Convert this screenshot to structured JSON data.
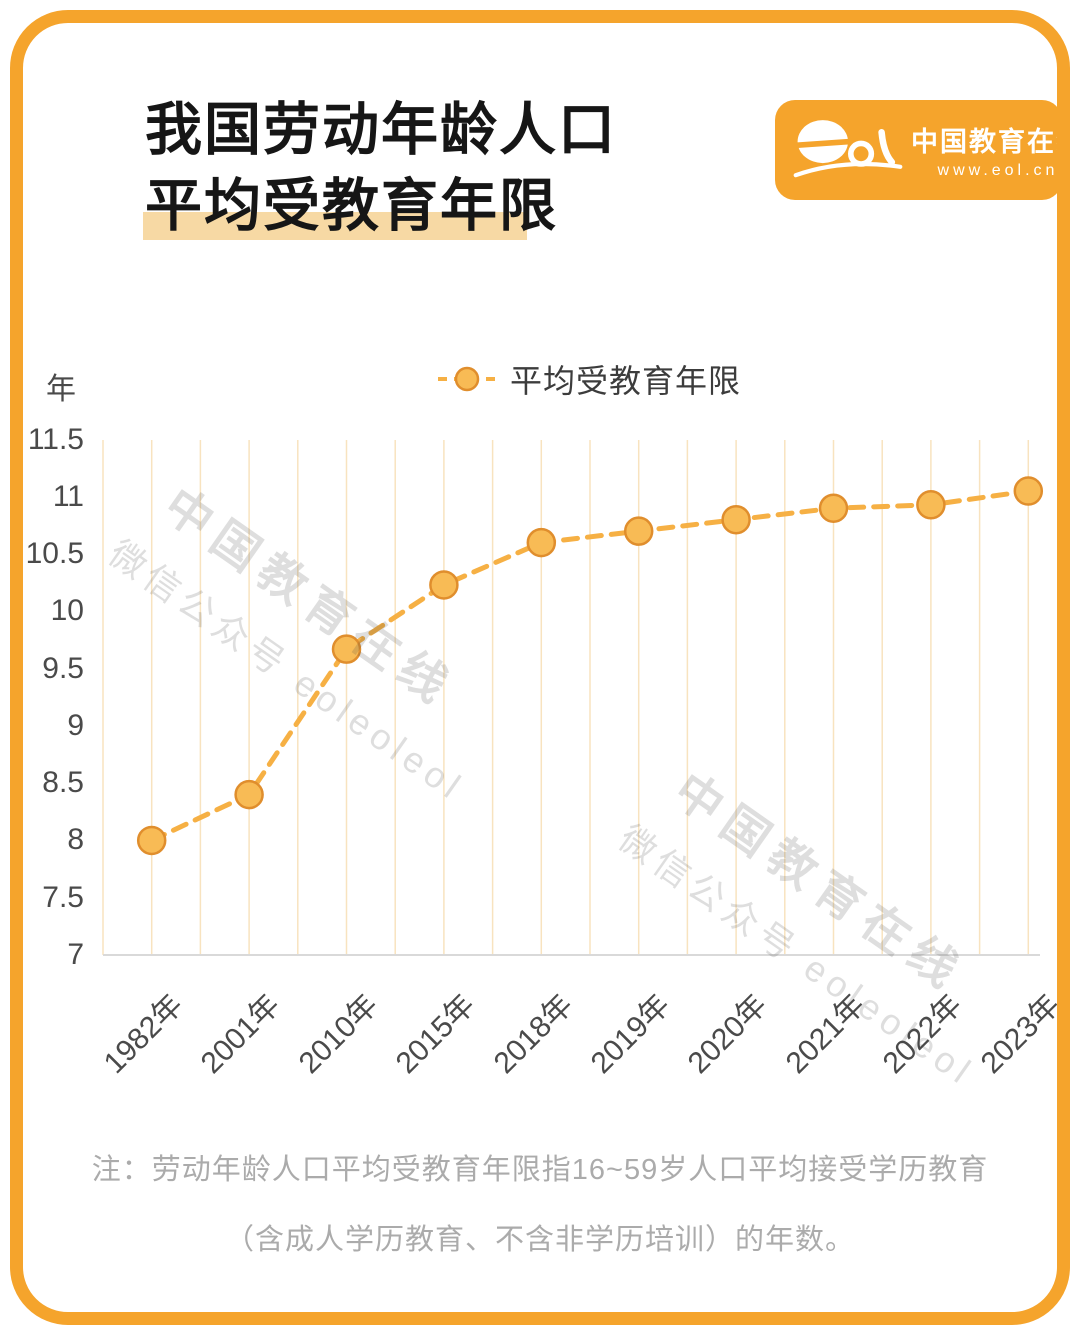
{
  "page": {
    "background": "#ffffff",
    "border_color": "#F5A42C"
  },
  "header": {
    "title_line1": "我国劳动年龄人口",
    "title_line2": "平均受教育年限",
    "highlight_color": "#F7D9A4",
    "logo": {
      "brand_script": "eol",
      "brand_name": "中国教育在线",
      "brand_url": "www.eol.cn",
      "bg_color": "#F5A42C"
    }
  },
  "chart_data": {
    "type": "line",
    "title": "我国劳动年龄人口平均受教育年限",
    "unit_label": "年",
    "legend": "平均受教育年限",
    "legend_position": "top-center",
    "categories": [
      "1982年",
      "2001年",
      "2010年",
      "2015年",
      "2018年",
      "2019年",
      "2020年",
      "2021年",
      "2022年",
      "2023年"
    ],
    "values": [
      8.0,
      8.4,
      9.67,
      10.23,
      10.6,
      10.7,
      10.8,
      10.9,
      10.93,
      11.05
    ],
    "ylim": [
      7,
      11.5
    ],
    "ytick_step": 0.5,
    "yticks": [
      "11.5",
      "11",
      "10.5",
      "10",
      "9.5",
      "9",
      "8.5",
      "8",
      "7.5",
      "7"
    ],
    "grid": "vertical-only",
    "line_style": "dashed",
    "line_color": "#F6B044",
    "marker_fill": "#F8BB55",
    "marker_stroke": "#E08E2D",
    "gridline_color": "#F8E3BF",
    "axis_line_color": "#D9D9D9"
  },
  "watermark": {
    "line1": "中国教育在线",
    "line2": "微信公众号 eoleoleol"
  },
  "footer": {
    "note_line1": "注：劳动年龄人口平均受教育年限指16~59岁人口平均接受学历教育",
    "note_line2": "（含成人学历教育、不含非学历培训）的年数。"
  }
}
